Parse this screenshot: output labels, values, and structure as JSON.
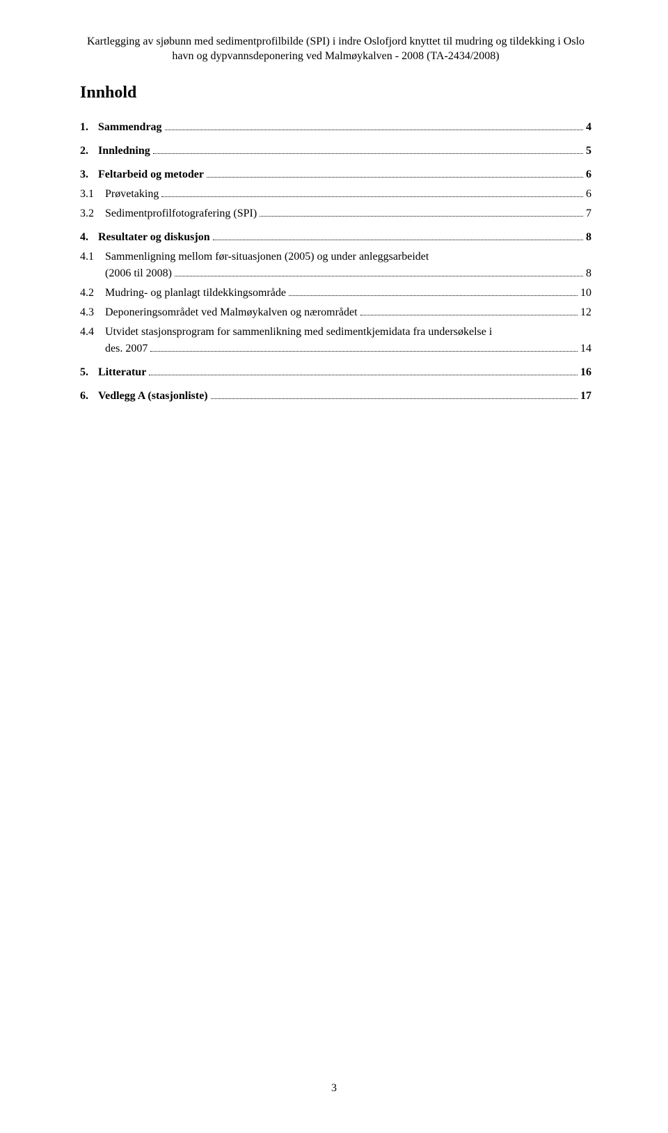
{
  "header": {
    "line1": "Kartlegging av sjøbunn med sedimentprofilbilde (SPI) i indre Oslofjord knyttet til mudring og tildekking i Oslo",
    "line2": "havn og dypvannsdeponering ved Malmøykalven - 2008 (TA-2434/2008)"
  },
  "title": "Innhold",
  "toc": [
    {
      "type": "top",
      "num": "1.",
      "label": "Sammendrag",
      "page": "4"
    },
    {
      "type": "top",
      "num": "2.",
      "label": "Innledning",
      "page": "5"
    },
    {
      "type": "top",
      "num": "3.",
      "label": "Feltarbeid og metoder",
      "page": "6"
    },
    {
      "type": "sub",
      "num": "3.1",
      "label": "Prøvetaking",
      "page": "6"
    },
    {
      "type": "sub",
      "num": "3.2",
      "label": "Sedimentprofilfotografering (SPI)",
      "page": "7"
    },
    {
      "type": "top",
      "num": "4.",
      "label": "Resultater og diskusjon",
      "page": "8"
    },
    {
      "type": "sub-multi",
      "num": "4.1",
      "label1": "Sammenligning mellom før-situasjonen (2005) og under anleggsarbeidet",
      "label2": "(2006 til 2008)",
      "page": "8"
    },
    {
      "type": "sub",
      "num": "4.2",
      "label": "Mudring- og planlagt tildekkingsområde",
      "page": "10"
    },
    {
      "type": "sub",
      "num": "4.3",
      "label": "Deponeringsområdet ved Malmøykalven og nærområdet",
      "page": "12"
    },
    {
      "type": "sub-multi",
      "num": "4.4",
      "label1": "Utvidet stasjonsprogram for sammenlikning med sedimentkjemidata fra undersøkelse i",
      "label2": "des. 2007",
      "page": "14"
    },
    {
      "type": "top",
      "num": "5.",
      "label": "Litteratur",
      "page": "16"
    },
    {
      "type": "top",
      "num": "6.",
      "label": "Vedlegg A (stasjonliste)",
      "page": "17"
    }
  ],
  "pageNumber": "3"
}
